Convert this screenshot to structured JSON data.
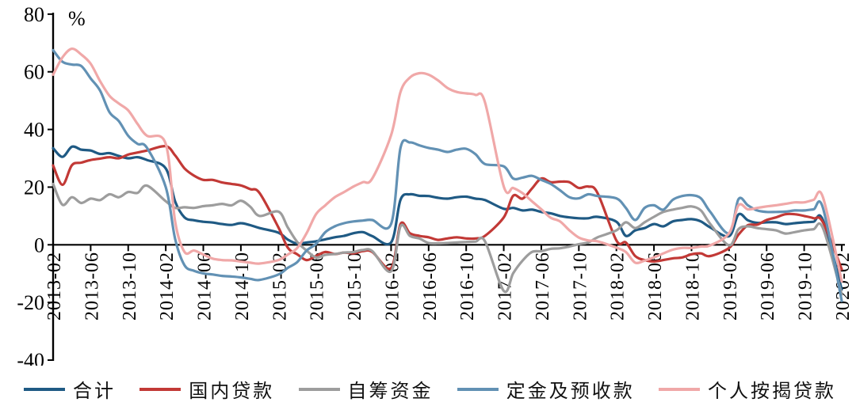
{
  "chart_data": {
    "type": "line",
    "title": "",
    "unit_label": "%",
    "ylabel": "",
    "xlabel": "",
    "ylim": [
      -40,
      80
    ],
    "yticks": [
      80,
      60,
      40,
      20,
      0,
      -20,
      -40
    ],
    "grid": false,
    "legend_position": "bottom",
    "x_tick_labels": [
      "2013-02",
      "2013-06",
      "2013-10",
      "2014-02",
      "2014-06",
      "2014-10",
      "2015-02",
      "2015-06",
      "2015-10",
      "2016-02",
      "2016-06",
      "2016-10",
      "2017-02",
      "2017-06",
      "2017-10",
      "2018-02",
      "2018-06",
      "2018-10",
      "2019-02",
      "2019-06",
      "2019-10",
      "2020-02"
    ],
    "x": [
      "2013-02",
      "2013-03",
      "2013-04",
      "2013-05",
      "2013-06",
      "2013-07",
      "2013-08",
      "2013-09",
      "2013-10",
      "2013-11",
      "2013-12",
      "2014-02",
      "2014-03",
      "2014-04",
      "2014-05",
      "2014-06",
      "2014-07",
      "2014-08",
      "2014-09",
      "2014-10",
      "2014-11",
      "2014-12",
      "2015-02",
      "2015-03",
      "2015-04",
      "2015-05",
      "2015-06",
      "2015-07",
      "2015-08",
      "2015-09",
      "2015-10",
      "2015-11",
      "2015-12",
      "2016-02",
      "2016-03",
      "2016-04",
      "2016-05",
      "2016-06",
      "2016-07",
      "2016-08",
      "2016-09",
      "2016-10",
      "2016-11",
      "2016-12",
      "2017-02",
      "2017-03",
      "2017-04",
      "2017-05",
      "2017-06",
      "2017-07",
      "2017-08",
      "2017-09",
      "2017-10",
      "2017-11",
      "2017-12",
      "2018-02",
      "2018-03",
      "2018-04",
      "2018-05",
      "2018-06",
      "2018-07",
      "2018-08",
      "2018-09",
      "2018-10",
      "2018-11",
      "2018-12",
      "2019-02",
      "2019-03",
      "2019-04",
      "2019-05",
      "2019-06",
      "2019-07",
      "2019-08",
      "2019-09",
      "2019-10",
      "2019-11",
      "2019-12",
      "2020-02"
    ],
    "series": [
      {
        "name": "合计",
        "color": "#1f5a84",
        "values": [
          33.5,
          30.5,
          34.0,
          33.0,
          32.7,
          31.5,
          31.8,
          30.8,
          30.0,
          30.4,
          29.4,
          26.5,
          15.0,
          9.5,
          8.5,
          8.0,
          7.7,
          7.2,
          6.9,
          7.5,
          6.8,
          5.8,
          4.2,
          1.8,
          0.4,
          0.8,
          1.2,
          1.9,
          2.6,
          3.1,
          4.0,
          4.4,
          3.0,
          0.8,
          15.6,
          17.5,
          17.0,
          16.9,
          16.3,
          16.0,
          16.5,
          16.7,
          16.0,
          15.5,
          12.5,
          12.8,
          11.9,
          12.2,
          11.4,
          10.9,
          10.0,
          9.5,
          9.2,
          9.2,
          9.7,
          8.0,
          3.1,
          5.0,
          5.8,
          7.2,
          6.4,
          8.1,
          8.6,
          8.9,
          8.1,
          6.0,
          3.0,
          10.5,
          8.5,
          7.6,
          7.8,
          7.8,
          7.2,
          7.5,
          7.8,
          8.0,
          8.6,
          -15.5
        ]
      },
      {
        "name": "国内贷款",
        "color": "#c23936",
        "values": [
          27.5,
          20.8,
          27.6,
          28.5,
          29.4,
          29.9,
          30.4,
          30.0,
          31.3,
          32.0,
          32.7,
          34.2,
          31.0,
          26.5,
          24.0,
          22.5,
          22.5,
          21.6,
          21.1,
          20.6,
          19.3,
          17.9,
          6.0,
          -1.0,
          -3.3,
          -5.3,
          -3.9,
          -2.5,
          -3.2,
          -2.7,
          -3.0,
          -2.2,
          -2.5,
          -8.1,
          7.2,
          4.0,
          3.1,
          2.6,
          1.7,
          2.2,
          2.6,
          2.2,
          2.2,
          3.1,
          9.5,
          17.0,
          16.0,
          19.5,
          23.0,
          21.7,
          21.9,
          21.7,
          19.7,
          20.2,
          17.9,
          1.5,
          0.8,
          -3.9,
          -5.3,
          -5.8,
          -5.3,
          -4.7,
          -4.4,
          -3.3,
          -3.0,
          -3.9,
          -1.1,
          3.5,
          6.8,
          7.0,
          8.6,
          9.5,
          10.6,
          10.6,
          10.0,
          9.2,
          7.8,
          -8.5
        ]
      },
      {
        "name": "自筹资金",
        "color": "#9d9d9d",
        "values": [
          21.1,
          13.9,
          16.5,
          14.5,
          16.0,
          15.5,
          17.5,
          16.5,
          18.3,
          18.0,
          20.5,
          15.1,
          12.8,
          13.0,
          12.8,
          13.4,
          13.7,
          14.2,
          13.7,
          15.3,
          13.2,
          10.0,
          11.5,
          6.0,
          1.0,
          -2.0,
          -4.4,
          -3.5,
          -3.2,
          -2.7,
          -2.5,
          -1.8,
          -2.2,
          -9.2,
          6.4,
          3.1,
          2.2,
          0.6,
          0.5,
          0.6,
          0.8,
          1.0,
          1.1,
          1.2,
          -16.0,
          -9.9,
          -5.5,
          -2.5,
          -2.2,
          -1.4,
          -1.2,
          -0.6,
          0.2,
          0.8,
          2.6,
          5.0,
          7.8,
          5.8,
          7.8,
          9.7,
          11.4,
          12.2,
          12.8,
          13.3,
          11.9,
          7.2,
          -0.2,
          5.4,
          6.4,
          5.8,
          5.4,
          5.0,
          3.9,
          4.4,
          5.0,
          5.4,
          5.8,
          -17.2
        ]
      },
      {
        "name": "定金及预收款",
        "color": "#6291b4",
        "values": [
          67.5,
          63.5,
          62.5,
          62.0,
          57.7,
          53.5,
          46.0,
          42.9,
          37.8,
          35.0,
          33.6,
          20.0,
          2.0,
          -7.1,
          -9.0,
          -9.9,
          -10.3,
          -10.8,
          -11.0,
          -11.3,
          -11.8,
          -12.2,
          -10.3,
          -8.0,
          -6.0,
          -2.0,
          0.3,
          4.4,
          6.4,
          7.5,
          8.1,
          8.4,
          8.6,
          7.2,
          33.6,
          35.5,
          34.5,
          33.6,
          33.0,
          32.2,
          33.0,
          33.3,
          31.4,
          28.0,
          27.2,
          23.0,
          23.3,
          23.9,
          22.5,
          21.1,
          18.9,
          16.5,
          16.1,
          17.5,
          16.9,
          16.1,
          12.8,
          8.6,
          12.8,
          13.7,
          12.2,
          15.6,
          16.9,
          17.2,
          16.1,
          11.4,
          4.0,
          15.8,
          13.7,
          11.9,
          11.4,
          11.4,
          11.5,
          11.9,
          11.9,
          12.3,
          12.8,
          -19.5
        ]
      },
      {
        "name": "个人按揭贷款",
        "color": "#f0a8a8",
        "values": [
          59.0,
          65.0,
          68.0,
          66.0,
          62.8,
          56.8,
          51.7,
          49.0,
          46.6,
          41.9,
          37.8,
          35.0,
          8.0,
          -2.5,
          -2.0,
          -3.4,
          -4.8,
          -5.3,
          -5.4,
          -5.8,
          -6.2,
          -6.5,
          -5.3,
          -3.4,
          -1.1,
          4.0,
          10.6,
          13.7,
          16.5,
          18.3,
          20.2,
          21.7,
          23.0,
          38.0,
          53.0,
          58.0,
          59.5,
          59.0,
          57.0,
          54.4,
          53.0,
          52.5,
          52.0,
          49.4,
          20.2,
          19.7,
          17.9,
          15.1,
          12.3,
          9.4,
          8.1,
          5.0,
          2.5,
          1.5,
          1.2,
          -1.0,
          -2.5,
          -6.2,
          -5.5,
          -4.4,
          -3.0,
          -1.7,
          -1.1,
          -1.1,
          -0.6,
          -0.2,
          4.0,
          13.7,
          12.3,
          12.8,
          13.3,
          13.7,
          14.2,
          14.7,
          14.7,
          15.6,
          16.5,
          -12.7
        ]
      }
    ]
  },
  "legend": {
    "items": [
      {
        "label": "合计"
      },
      {
        "label": "国内贷款"
      },
      {
        "label": "自筹资金"
      },
      {
        "label": "定金及预收款"
      },
      {
        "label": "个人按揭贷款"
      }
    ]
  }
}
